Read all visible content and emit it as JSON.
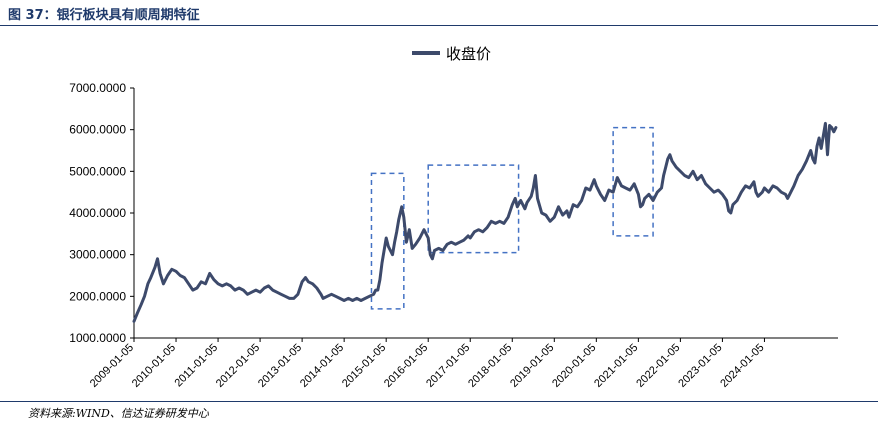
{
  "figure": {
    "title": "图 37：银行板块具有顺周期特征",
    "source": "资料来源:WIND、信达证券研发中心"
  },
  "colors": {
    "series": "#3d4a6b",
    "box": "#4472c4",
    "rule": "#1f3a6b"
  },
  "chart_data": {
    "type": "line",
    "title": "",
    "xlabel": "",
    "ylabel": "",
    "ylim": [
      1000,
      7000
    ],
    "y_ticks": [
      "7000.0000",
      "6000.0000",
      "5000.0000",
      "4000.0000",
      "3000.0000",
      "2000.0000",
      "1000.0000"
    ],
    "y_tick_values": [
      7000,
      6000,
      5000,
      4000,
      3000,
      2000,
      1000
    ],
    "x_ticks": [
      "2009-01-05",
      "2010-01-05",
      "2011-01-05",
      "2012-01-05",
      "2013-01-05",
      "2014-01-05",
      "2015-01-05",
      "2016-01-05",
      "2017-01-05",
      "2018-01-05",
      "2019-01-05",
      "2020-01-05",
      "2021-01-05",
      "2022-01-05",
      "2023-01-05",
      "2024-01-05"
    ],
    "xlim": [
      2009.0,
      2025.75
    ],
    "legend": "top-center",
    "series": [
      {
        "name": "收盘价",
        "points": [
          [
            2009.0,
            1400
          ],
          [
            2009.08,
            1600
          ],
          [
            2009.17,
            1800
          ],
          [
            2009.25,
            2000
          ],
          [
            2009.33,
            2300
          ],
          [
            2009.4,
            2450
          ],
          [
            2009.5,
            2700
          ],
          [
            2009.56,
            2900
          ],
          [
            2009.62,
            2550
          ],
          [
            2009.7,
            2300
          ],
          [
            2009.8,
            2500
          ],
          [
            2009.9,
            2650
          ],
          [
            2010.0,
            2600
          ],
          [
            2010.1,
            2500
          ],
          [
            2010.2,
            2450
          ],
          [
            2010.3,
            2300
          ],
          [
            2010.4,
            2150
          ],
          [
            2010.5,
            2200
          ],
          [
            2010.6,
            2350
          ],
          [
            2010.7,
            2300
          ],
          [
            2010.8,
            2550
          ],
          [
            2010.9,
            2400
          ],
          [
            2011.0,
            2300
          ],
          [
            2011.1,
            2250
          ],
          [
            2011.2,
            2300
          ],
          [
            2011.3,
            2250
          ],
          [
            2011.4,
            2150
          ],
          [
            2011.5,
            2200
          ],
          [
            2011.6,
            2150
          ],
          [
            2011.7,
            2050
          ],
          [
            2011.8,
            2100
          ],
          [
            2011.9,
            2150
          ],
          [
            2012.0,
            2100
          ],
          [
            2012.1,
            2200
          ],
          [
            2012.2,
            2250
          ],
          [
            2012.3,
            2150
          ],
          [
            2012.4,
            2100
          ],
          [
            2012.5,
            2050
          ],
          [
            2012.6,
            2000
          ],
          [
            2012.7,
            1950
          ],
          [
            2012.8,
            1950
          ],
          [
            2012.9,
            2050
          ],
          [
            2013.0,
            2350
          ],
          [
            2013.08,
            2450
          ],
          [
            2013.15,
            2350
          ],
          [
            2013.25,
            2300
          ],
          [
            2013.35,
            2200
          ],
          [
            2013.45,
            2050
          ],
          [
            2013.5,
            1950
          ],
          [
            2013.6,
            2000
          ],
          [
            2013.7,
            2050
          ],
          [
            2013.8,
            2000
          ],
          [
            2013.9,
            1950
          ],
          [
            2014.0,
            1900
          ],
          [
            2014.1,
            1950
          ],
          [
            2014.2,
            1900
          ],
          [
            2014.3,
            1950
          ],
          [
            2014.4,
            1900
          ],
          [
            2014.5,
            1950
          ],
          [
            2014.6,
            2000
          ],
          [
            2014.7,
            2050
          ],
          [
            2014.75,
            2150
          ],
          [
            2014.8,
            2150
          ],
          [
            2014.85,
            2400
          ],
          [
            2014.9,
            2800
          ],
          [
            2014.95,
            3100
          ],
          [
            2015.0,
            3400
          ],
          [
            2015.05,
            3200
          ],
          [
            2015.1,
            3100
          ],
          [
            2015.15,
            3000
          ],
          [
            2015.2,
            3300
          ],
          [
            2015.25,
            3550
          ],
          [
            2015.3,
            3850
          ],
          [
            2015.37,
            4150
          ],
          [
            2015.42,
            3900
          ],
          [
            2015.48,
            3300
          ],
          [
            2015.55,
            3600
          ],
          [
            2015.62,
            3150
          ],
          [
            2015.7,
            3250
          ],
          [
            2015.8,
            3400
          ],
          [
            2015.9,
            3600
          ],
          [
            2016.0,
            3400
          ],
          [
            2016.05,
            3000
          ],
          [
            2016.1,
            2900
          ],
          [
            2016.15,
            3100
          ],
          [
            2016.25,
            3150
          ],
          [
            2016.35,
            3100
          ],
          [
            2016.45,
            3250
          ],
          [
            2016.55,
            3300
          ],
          [
            2016.65,
            3250
          ],
          [
            2016.75,
            3300
          ],
          [
            2016.85,
            3350
          ],
          [
            2016.95,
            3450
          ],
          [
            2017.0,
            3400
          ],
          [
            2017.1,
            3550
          ],
          [
            2017.2,
            3600
          ],
          [
            2017.3,
            3550
          ],
          [
            2017.4,
            3650
          ],
          [
            2017.5,
            3800
          ],
          [
            2017.6,
            3750
          ],
          [
            2017.7,
            3800
          ],
          [
            2017.8,
            3750
          ],
          [
            2017.9,
            3900
          ],
          [
            2018.0,
            4200
          ],
          [
            2018.07,
            4350
          ],
          [
            2018.12,
            4150
          ],
          [
            2018.2,
            4300
          ],
          [
            2018.3,
            4100
          ],
          [
            2018.35,
            4250
          ],
          [
            2018.45,
            4400
          ],
          [
            2018.5,
            4600
          ],
          [
            2018.55,
            4900
          ],
          [
            2018.6,
            4350
          ],
          [
            2018.7,
            4000
          ],
          [
            2018.8,
            3950
          ],
          [
            2018.9,
            3800
          ],
          [
            2019.0,
            3900
          ],
          [
            2019.1,
            4150
          ],
          [
            2019.2,
            3950
          ],
          [
            2019.3,
            4050
          ],
          [
            2019.35,
            3900
          ],
          [
            2019.45,
            4200
          ],
          [
            2019.55,
            4150
          ],
          [
            2019.65,
            4300
          ],
          [
            2019.75,
            4600
          ],
          [
            2019.85,
            4550
          ],
          [
            2019.95,
            4800
          ],
          [
            2020.0,
            4650
          ],
          [
            2020.1,
            4450
          ],
          [
            2020.2,
            4300
          ],
          [
            2020.3,
            4550
          ],
          [
            2020.4,
            4500
          ],
          [
            2020.5,
            4850
          ],
          [
            2020.55,
            4750
          ],
          [
            2020.6,
            4650
          ],
          [
            2020.7,
            4600
          ],
          [
            2020.8,
            4550
          ],
          [
            2020.9,
            4700
          ],
          [
            2021.0,
            4450
          ],
          [
            2021.05,
            4150
          ],
          [
            2021.1,
            4200
          ],
          [
            2021.15,
            4350
          ],
          [
            2021.25,
            4450
          ],
          [
            2021.35,
            4300
          ],
          [
            2021.45,
            4500
          ],
          [
            2021.55,
            4600
          ],
          [
            2021.6,
            4900
          ],
          [
            2021.65,
            5100
          ],
          [
            2021.7,
            5300
          ],
          [
            2021.75,
            5400
          ],
          [
            2021.8,
            5250
          ],
          [
            2021.9,
            5100
          ],
          [
            2022.0,
            5000
          ],
          [
            2022.1,
            4900
          ],
          [
            2022.2,
            4850
          ],
          [
            2022.3,
            5000
          ],
          [
            2022.4,
            4800
          ],
          [
            2022.5,
            4900
          ],
          [
            2022.6,
            4700
          ],
          [
            2022.7,
            4600
          ],
          [
            2022.8,
            4500
          ],
          [
            2022.9,
            4550
          ],
          [
            2023.0,
            4450
          ],
          [
            2023.1,
            4300
          ],
          [
            2023.15,
            4050
          ],
          [
            2023.2,
            4000
          ],
          [
            2023.25,
            4200
          ],
          [
            2023.35,
            4300
          ],
          [
            2023.45,
            4500
          ],
          [
            2023.55,
            4650
          ],
          [
            2023.65,
            4600
          ],
          [
            2023.75,
            4750
          ],
          [
            2023.8,
            4500
          ],
          [
            2023.85,
            4400
          ],
          [
            2023.95,
            4500
          ],
          [
            2024.0,
            4600
          ],
          [
            2024.1,
            4500
          ],
          [
            2024.2,
            4650
          ],
          [
            2024.3,
            4600
          ],
          [
            2024.4,
            4500
          ],
          [
            2024.5,
            4450
          ],
          [
            2024.55,
            4350
          ],
          [
            2024.6,
            4450
          ],
          [
            2024.7,
            4650
          ],
          [
            2024.8,
            4900
          ],
          [
            2024.9,
            5050
          ],
          [
            2025.0,
            5250
          ],
          [
            2025.1,
            5500
          ],
          [
            2025.15,
            5300
          ],
          [
            2025.2,
            5200
          ],
          [
            2025.25,
            5600
          ],
          [
            2025.3,
            5800
          ],
          [
            2025.35,
            5550
          ],
          [
            2025.4,
            5850
          ],
          [
            2025.45,
            6150
          ],
          [
            2025.5,
            5400
          ],
          [
            2025.55,
            6100
          ],
          [
            2025.6,
            6050
          ],
          [
            2025.65,
            5950
          ],
          [
            2025.7,
            6050
          ]
        ]
      }
    ],
    "highlight_boxes": [
      {
        "x": [
          2014.65,
          2015.42
        ],
        "y": [
          1700,
          4950
        ]
      },
      {
        "x": [
          2016.0,
          2018.15
        ],
        "y": [
          3050,
          5150
        ]
      },
      {
        "x": [
          2020.4,
          2021.35
        ],
        "y": [
          3450,
          6050
        ]
      }
    ]
  }
}
